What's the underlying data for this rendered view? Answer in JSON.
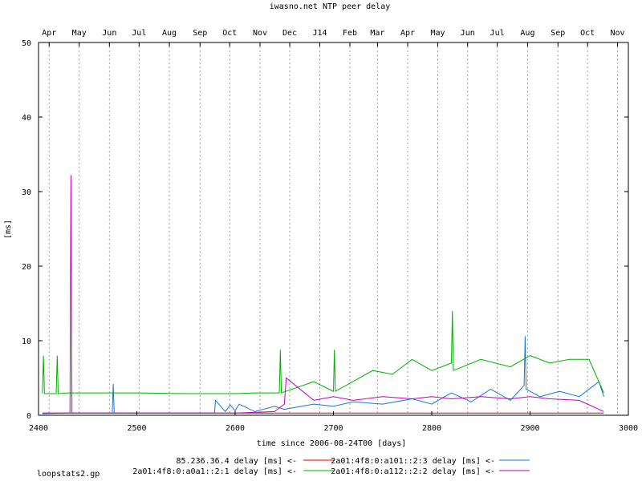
{
  "chart_data": {
    "type": "line",
    "title": "iwasno.net NTP peer delay",
    "xlabel": "time since 2006-08-24T00 [days]",
    "ylabel": "[ms]",
    "footer": "loopstats2.gp",
    "xlim": [
      2400,
      3000
    ],
    "ylim": [
      0,
      50
    ],
    "x_ticks": [
      2400,
      2500,
      2600,
      2700,
      2800,
      2900,
      3000
    ],
    "y_ticks": [
      0,
      10,
      20,
      30,
      40,
      50
    ],
    "month_labels": [
      "Apr",
      "May",
      "Jun",
      "Jul",
      "Aug",
      "Sep",
      "Oct",
      "Nov",
      "Dec",
      "J14",
      "Feb",
      "Mar",
      "Apr",
      "May",
      "Jun",
      "Jul",
      "Aug",
      "Sep",
      "Oct",
      "Nov"
    ],
    "month_days": [
      2410.8,
      2441.4,
      2472.1,
      2502.3,
      2533.1,
      2564.3,
      2594.5,
      2625.3,
      2655.5,
      2686.1,
      2716.7,
      2744.8,
      2775.5,
      2806.1,
      2836.5,
      2866.6,
      2897.5,
      2928.4,
      2958.5,
      2989.0
    ],
    "grid": true,
    "grid_axis": "x (months)",
    "legend_placement": "bottom",
    "series": [
      {
        "name": "85.236.36.4 delay [ms] <-",
        "color": "#e00000",
        "x": [
          2404,
          2450,
          2500,
          2550,
          2600,
          2650,
          2700,
          2750,
          2800,
          2850,
          2900,
          2950,
          2975
        ],
        "y": [
          0.3,
          0.3,
          0.3,
          0.3,
          0.3,
          0.3,
          0.3,
          0.3,
          0.3,
          0.3,
          0.3,
          0.3,
          0.3
        ]
      },
      {
        "name": "2a01:4f8:0:a101::2:3 delay [ms] <-",
        "color": "#1878d0",
        "x": [
          2404,
          2430,
          2475,
          2476,
          2477,
          2500,
          2540,
          2579,
          2580,
          2590,
          2595,
          2600,
          2604,
          2620,
          2640,
          2650,
          2680,
          2700,
          2720,
          2750,
          2780,
          2800,
          2820,
          2840,
          2860,
          2880,
          2894,
          2895,
          2896,
          2910,
          2930,
          2950,
          2970,
          2975
        ],
        "y": [
          0.2,
          0.3,
          0.3,
          4.2,
          0.3,
          0.3,
          0.3,
          0.3,
          2.0,
          0.5,
          1.4,
          0.6,
          1.5,
          0.5,
          1.2,
          0.8,
          1.5,
          1.2,
          1.8,
          1.5,
          2.2,
          1.5,
          3.0,
          1.8,
          3.5,
          2.0,
          4.0,
          10.6,
          3.5,
          2.5,
          3.2,
          2.5,
          4.5,
          2.5
        ]
      },
      {
        "name": "2a01:4f8:0:a0a1::2:1 delay [ms] <-",
        "color": "#00b000",
        "x": [
          2404,
          2405,
          2406,
          2418,
          2419,
          2420,
          2430,
          2450,
          2500,
          2550,
          2600,
          2620,
          2645,
          2646,
          2647,
          2680,
          2700,
          2701,
          2702,
          2740,
          2760,
          2780,
          2800,
          2820,
          2821,
          2822,
          2850,
          2880,
          2900,
          2920,
          2940,
          2960,
          2975
        ],
        "y": [
          2.9,
          8.0,
          2.9,
          2.9,
          8.0,
          2.9,
          3.0,
          3.0,
          3.0,
          2.9,
          2.9,
          3.0,
          3.0,
          8.8,
          3.0,
          4.5,
          3.2,
          8.8,
          3.2,
          6.0,
          5.5,
          7.5,
          6.0,
          7.0,
          14.0,
          6.0,
          7.5,
          6.5,
          8.0,
          7.0,
          7.5,
          7.5,
          3.0
        ]
      },
      {
        "name": "2a01:4f8:0:a112::2:2 delay [ms] <-",
        "color": "#c000c0",
        "x": [
          2404,
          2430,
          2432,
          2433,
          2434,
          2500,
          2550,
          2600,
          2640,
          2650,
          2652,
          2680,
          2700,
          2720,
          2750,
          2780,
          2800,
          2820,
          2850,
          2880,
          2900,
          2920,
          2950,
          2975
        ],
        "y": [
          0.3,
          0.3,
          0.3,
          32.2,
          0.3,
          0.3,
          0.3,
          0.3,
          0.5,
          1.5,
          5.0,
          2.0,
          2.5,
          2.0,
          2.5,
          2.2,
          2.5,
          2.2,
          2.5,
          2.2,
          2.5,
          2.2,
          2.0,
          0.5
        ]
      }
    ]
  }
}
